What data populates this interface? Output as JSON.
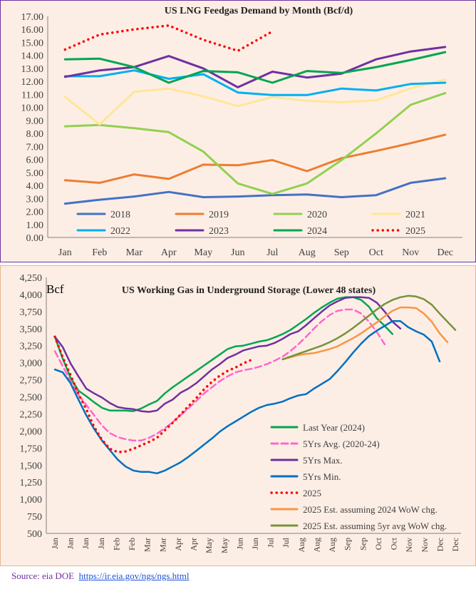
{
  "chart_data": [
    {
      "type": "line",
      "title": "US LNG Feedgas Demand by Month (Bcf/d)",
      "categories": [
        "Jan",
        "Feb",
        "Mar",
        "Apr",
        "May",
        "Jun",
        "Jul",
        "Aug",
        "Sep",
        "Oct",
        "Nov",
        "Dec"
      ],
      "ylim": [
        0,
        17
      ],
      "yticks": [
        "0.00",
        "1.00",
        "2.00",
        "3.00",
        "4.00",
        "5.00",
        "6.00",
        "7.00",
        "8.00",
        "9.00",
        "10.00",
        "11.00",
        "12.00",
        "13.00",
        "14.00",
        "15.00",
        "16.00",
        "17.00"
      ],
      "grid": false,
      "legend": "bottom",
      "series": [
        {
          "name": "2018",
          "color": "#4472c4",
          "style": "solid",
          "values": [
            2.6,
            2.9,
            3.15,
            3.5,
            3.1,
            3.15,
            3.25,
            3.3,
            3.1,
            3.25,
            4.2,
            4.55
          ]
        },
        {
          "name": "2019",
          "color": "#ed7d31",
          "style": "solid",
          "values": [
            4.4,
            4.2,
            4.85,
            4.5,
            5.6,
            5.55,
            5.95,
            5.1,
            6.1,
            6.65,
            7.25,
            7.9
          ]
        },
        {
          "name": "2020",
          "color": "#92d050",
          "style": "solid",
          "values": [
            8.55,
            8.65,
            8.4,
            8.1,
            6.6,
            4.15,
            3.35,
            4.15,
            5.95,
            8.0,
            10.2,
            11.1
          ]
        },
        {
          "name": "2021",
          "color": "#ffe699",
          "style": "solid",
          "values": [
            10.8,
            8.7,
            11.2,
            11.45,
            10.85,
            10.1,
            10.8,
            10.5,
            10.4,
            10.55,
            11.45,
            12.15
          ]
        },
        {
          "name": "2022",
          "color": "#00b0f0",
          "style": "solid",
          "values": [
            12.4,
            12.4,
            12.85,
            12.2,
            12.55,
            11.15,
            10.95,
            10.95,
            11.45,
            11.3,
            11.8,
            11.9
          ]
        },
        {
          "name": "2023",
          "color": "#7030a0",
          "style": "solid",
          "values": [
            12.35,
            12.85,
            13.1,
            13.95,
            13.0,
            11.55,
            12.75,
            12.3,
            12.6,
            13.7,
            14.3,
            14.65
          ]
        },
        {
          "name": "2024",
          "color": "#00a651",
          "style": "solid",
          "values": [
            13.7,
            13.75,
            13.1,
            11.9,
            12.8,
            12.7,
            11.9,
            12.8,
            12.65,
            13.1,
            13.65,
            14.25
          ]
        },
        {
          "name": "2025",
          "color": "#ff0000",
          "style": "dotted",
          "values": [
            14.45,
            15.6,
            16.0,
            16.3,
            15.2,
            14.35,
            15.85,
            null,
            null,
            null,
            null,
            null
          ]
        }
      ]
    },
    {
      "type": "line",
      "title": "US Working Gas in Underground Storage (Lower 48 states)",
      "ylabel": "Bcf",
      "ylim": [
        500,
        4250
      ],
      "yticks": [
        "500",
        "750",
        "1,000",
        "1,250",
        "1,500",
        "1,750",
        "2,000",
        "2,250",
        "2,500",
        "2,750",
        "3,000",
        "3,250",
        "3,500",
        "3,750",
        "4,000",
        "4,250"
      ],
      "xticks": [
        "Jan",
        "Jan",
        "Jan",
        "Jan",
        "Feb",
        "Feb",
        "Mar",
        "Mar",
        "Apr",
        "Apr",
        "May",
        "May",
        "Jun",
        "Jun",
        "Jul",
        "Jul",
        "Aug",
        "Aug",
        "Aug",
        "Sep",
        "Sep",
        "Oct",
        "Oct",
        "Nov",
        "Nov",
        "Dec",
        "Dec"
      ],
      "grid": false,
      "legend": "bottom-right",
      "series": [
        {
          "name": "Last Year (2024)",
          "color": "#00a651",
          "style": "solid",
          "values": [
            3380,
            3060,
            2780,
            2590,
            2510,
            2420,
            2340,
            2300,
            2300,
            2300,
            2290,
            2330,
            2390,
            2440,
            2550,
            2640,
            2720,
            2800,
            2880,
            2960,
            3040,
            3120,
            3200,
            3240,
            3250,
            3280,
            3310,
            3330,
            3370,
            3420,
            3480,
            3560,
            3640,
            3730,
            3810,
            3880,
            3940,
            3960,
            3960,
            3920,
            3820,
            3650,
            3540,
            3420
          ]
        },
        {
          "name": "5Yrs Avg. (2020-24)",
          "color": "#ff66cc",
          "style": "dashed",
          "values": [
            3170,
            2950,
            2730,
            2530,
            2380,
            2230,
            2080,
            1970,
            1910,
            1880,
            1860,
            1860,
            1900,
            1960,
            2040,
            2130,
            2230,
            2330,
            2440,
            2550,
            2640,
            2730,
            2800,
            2860,
            2890,
            2910,
            2940,
            2980,
            3030,
            3090,
            3170,
            3270,
            3380,
            3500,
            3610,
            3700,
            3760,
            3780,
            3780,
            3720,
            3600,
            3450,
            3270
          ]
        },
        {
          "name": "5Yrs Max.",
          "color": "#7030a0",
          "style": "solid",
          "values": [
            3380,
            3230,
            2990,
            2800,
            2620,
            2550,
            2490,
            2410,
            2350,
            2330,
            2320,
            2290,
            2280,
            2300,
            2400,
            2460,
            2560,
            2620,
            2700,
            2800,
            2900,
            2980,
            3070,
            3120,
            3180,
            3210,
            3240,
            3250,
            3290,
            3350,
            3420,
            3460,
            3550,
            3650,
            3750,
            3840,
            3900,
            3950,
            3960,
            3960,
            3950,
            3880,
            3750,
            3600,
            3500
          ]
        },
        {
          "name": "5Yrs Min.",
          "color": "#0070c0",
          "style": "solid",
          "values": [
            2900,
            2860,
            2700,
            2460,
            2230,
            2030,
            1860,
            1720,
            1580,
            1480,
            1420,
            1400,
            1400,
            1380,
            1420,
            1480,
            1540,
            1620,
            1710,
            1800,
            1890,
            1990,
            2070,
            2140,
            2210,
            2280,
            2340,
            2380,
            2400,
            2430,
            2480,
            2520,
            2540,
            2620,
            2690,
            2760,
            2880,
            3010,
            3150,
            3280,
            3390,
            3470,
            3540,
            3610,
            3610,
            3520,
            3460,
            3410,
            3310,
            3020
          ]
        },
        {
          "name": "2025",
          "color": "#ff0000",
          "style": "dotted",
          "values": [
            3380,
            3080,
            2820,
            2540,
            2320,
            2060,
            1870,
            1740,
            1690,
            1700,
            1740,
            1790,
            1840,
            1900,
            2010,
            2120,
            2240,
            2360,
            2480,
            2610,
            2720,
            2810,
            2880,
            2930,
            2990,
            3040
          ]
        },
        {
          "name": "2025 Est. assuming 2024 WoW chg.",
          "color": "#f79646",
          "style": "solid",
          "values": [
            3050,
            3080,
            3110,
            3130,
            3140,
            3170,
            3200,
            3240,
            3300,
            3360,
            3430,
            3510,
            3590,
            3680,
            3760,
            3810,
            3810,
            3800,
            3720,
            3600,
            3430,
            3300
          ]
        },
        {
          "name": "2025 Est. assuming 5yr avg WoW chg.",
          "color": "#76933c",
          "style": "solid",
          "values": [
            3050,
            3090,
            3130,
            3170,
            3210,
            3250,
            3300,
            3360,
            3430,
            3510,
            3600,
            3690,
            3780,
            3860,
            3920,
            3960,
            3980,
            3970,
            3930,
            3850,
            3720,
            3600,
            3480
          ]
        }
      ]
    }
  ],
  "source": {
    "text": "Source: eia DOE",
    "link": "https://ir.eia.gov/ngs/ngs.html"
  }
}
